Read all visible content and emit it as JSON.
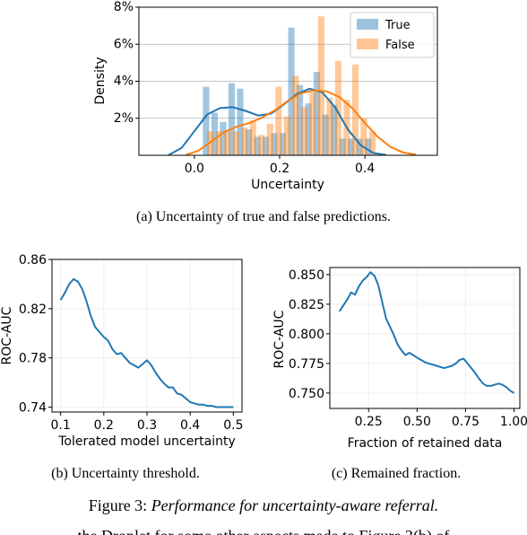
{
  "figure": {
    "caption_prefix": "Figure 3:",
    "caption_text": "Performance for uncertainty-aware referral.",
    "bottom_fragment": "the Droplet for some other aspects made to Figure 3(b) of"
  },
  "chart_data": [
    {
      "id": "a",
      "type": "histogram",
      "caption": "(a)  Uncertainty of true and false predictions.",
      "xlabel": "Uncertainty",
      "ylabel": "Density",
      "xlim": [
        -0.13,
        0.57
      ],
      "ylim": [
        0,
        8
      ],
      "xticks": [
        0.0,
        0.2,
        0.4
      ],
      "xtick_labels": [
        "0.0",
        "0.2",
        "0.4"
      ],
      "yticks": [
        2,
        4,
        6,
        8
      ],
      "ytick_labels": [
        "2%",
        "4%",
        "6%",
        "8%"
      ],
      "grid": "y",
      "legend_position": "top-right",
      "series": [
        {
          "name": "True",
          "color": "#1f77b4",
          "bins": [
            [
              0.02,
              0.035,
              3.7
            ],
            [
              0.04,
              0.055,
              2.3
            ],
            [
              0.06,
              0.075,
              1.8
            ],
            [
              0.08,
              0.095,
              3.9
            ],
            [
              0.1,
              0.115,
              3.6
            ],
            [
              0.12,
              0.135,
              1.4
            ],
            [
              0.14,
              0.155,
              1.0
            ],
            [
              0.16,
              0.175,
              1.0
            ],
            [
              0.18,
              0.195,
              1.2
            ],
            [
              0.2,
              0.215,
              1.2
            ],
            [
              0.22,
              0.235,
              6.9
            ],
            [
              0.24,
              0.255,
              3.8
            ],
            [
              0.26,
              0.275,
              2.8
            ],
            [
              0.28,
              0.295,
              4.5
            ],
            [
              0.3,
              0.315,
              2.2
            ],
            [
              0.32,
              0.335,
              2.7
            ],
            [
              0.34,
              0.355,
              0.9
            ],
            [
              0.36,
              0.375,
              0.9
            ],
            [
              0.38,
              0.395,
              0.9
            ],
            [
              0.4,
              0.415,
              0.9
            ]
          ],
          "kde": [
            [
              -0.06,
              0.02
            ],
            [
              -0.03,
              0.4
            ],
            [
              0.0,
              1.3
            ],
            [
              0.03,
              2.2
            ],
            [
              0.06,
              2.55
            ],
            [
              0.09,
              2.6
            ],
            [
              0.12,
              2.4
            ],
            [
              0.15,
              2.15
            ],
            [
              0.18,
              2.25
            ],
            [
              0.21,
              2.75
            ],
            [
              0.24,
              3.3
            ],
            [
              0.27,
              3.6
            ],
            [
              0.3,
              3.4
            ],
            [
              0.33,
              2.6
            ],
            [
              0.36,
              1.4
            ],
            [
              0.39,
              0.55
            ],
            [
              0.42,
              0.12
            ],
            [
              0.45,
              0.02
            ]
          ]
        },
        {
          "name": "False",
          "color": "#ff7f0e",
          "bins": [
            [
              0.03,
              0.045,
              1.3
            ],
            [
              0.05,
              0.065,
              1.3
            ],
            [
              0.07,
              0.085,
              1.3
            ],
            [
              0.09,
              0.105,
              1.3
            ],
            [
              0.11,
              0.125,
              1.5
            ],
            [
              0.13,
              0.145,
              1.9
            ],
            [
              0.15,
              0.165,
              1.1
            ],
            [
              0.17,
              0.185,
              1.7
            ],
            [
              0.19,
              0.205,
              3.7
            ],
            [
              0.21,
              0.225,
              2.1
            ],
            [
              0.23,
              0.245,
              4.3
            ],
            [
              0.25,
              0.265,
              2.6
            ],
            [
              0.27,
              0.285,
              3.4
            ],
            [
              0.29,
              0.305,
              7.5
            ],
            [
              0.31,
              0.325,
              3.1
            ],
            [
              0.33,
              0.345,
              5.1
            ],
            [
              0.35,
              0.365,
              3.0
            ],
            [
              0.37,
              0.385,
              4.9
            ],
            [
              0.39,
              0.405,
              2.0
            ],
            [
              0.41,
              0.425,
              1.3
            ]
          ],
          "kde": [
            [
              -0.02,
              0.02
            ],
            [
              0.01,
              0.25
            ],
            [
              0.04,
              0.75
            ],
            [
              0.07,
              1.25
            ],
            [
              0.1,
              1.55
            ],
            [
              0.13,
              1.75
            ],
            [
              0.16,
              2.05
            ],
            [
              0.19,
              2.45
            ],
            [
              0.22,
              2.95
            ],
            [
              0.25,
              3.35
            ],
            [
              0.28,
              3.5
            ],
            [
              0.31,
              3.45
            ],
            [
              0.34,
              3.15
            ],
            [
              0.37,
              2.55
            ],
            [
              0.4,
              1.75
            ],
            [
              0.43,
              1.0
            ],
            [
              0.46,
              0.45
            ],
            [
              0.49,
              0.15
            ],
            [
              0.52,
              0.03
            ]
          ]
        }
      ]
    },
    {
      "id": "b",
      "type": "line",
      "caption": "(b)  Uncertainty threshold.",
      "xlabel": "Tolerated model uncertainty",
      "ylabel": "ROC-AUC",
      "xlim": [
        0.08,
        0.52
      ],
      "ylim": [
        0.736,
        0.86
      ],
      "xticks": [
        0.1,
        0.2,
        0.3,
        0.4,
        0.5
      ],
      "xtick_labels": [
        "0.1",
        "0.2",
        "0.3",
        "0.4",
        "0.5"
      ],
      "yticks": [
        0.74,
        0.78,
        0.82,
        0.86
      ],
      "ytick_labels": [
        "0.74",
        "0.78",
        "0.82",
        "0.86"
      ],
      "grid": "both",
      "series": [
        {
          "color": "#1f77b4",
          "x": [
            0.1,
            0.11,
            0.12,
            0.13,
            0.14,
            0.15,
            0.16,
            0.17,
            0.18,
            0.19,
            0.2,
            0.21,
            0.22,
            0.23,
            0.24,
            0.25,
            0.26,
            0.27,
            0.28,
            0.29,
            0.3,
            0.31,
            0.32,
            0.33,
            0.34,
            0.35,
            0.36,
            0.37,
            0.38,
            0.39,
            0.4,
            0.41,
            0.42,
            0.43,
            0.44,
            0.45,
            0.46,
            0.47,
            0.48,
            0.49,
            0.5
          ],
          "y": [
            0.827,
            0.833,
            0.84,
            0.844,
            0.842,
            0.836,
            0.826,
            0.814,
            0.805,
            0.801,
            0.797,
            0.794,
            0.787,
            0.783,
            0.784,
            0.78,
            0.776,
            0.774,
            0.772,
            0.775,
            0.778,
            0.774,
            0.768,
            0.763,
            0.759,
            0.756,
            0.756,
            0.751,
            0.75,
            0.747,
            0.744,
            0.743,
            0.742,
            0.742,
            0.741,
            0.741,
            0.74,
            0.74,
            0.74,
            0.74,
            0.74
          ]
        }
      ]
    },
    {
      "id": "c",
      "type": "line",
      "caption": "(c)  Remained fraction.",
      "xlabel": "Fraction of retained data",
      "ylabel": "ROC-AUC",
      "xlim": [
        0.05,
        1.03
      ],
      "ylim": [
        0.737,
        0.856
      ],
      "xticks": [
        0.25,
        0.5,
        0.75,
        1.0
      ],
      "xtick_labels": [
        "0.25",
        "0.50",
        "0.75",
        "1.00"
      ],
      "yticks": [
        0.75,
        0.775,
        0.8,
        0.825,
        0.85
      ],
      "ytick_labels": [
        "0.750",
        "0.775",
        "0.800",
        "0.825",
        "0.850"
      ],
      "grid": "both",
      "series": [
        {
          "color": "#1f77b4",
          "x": [
            0.1,
            0.12,
            0.14,
            0.16,
            0.18,
            0.2,
            0.22,
            0.24,
            0.26,
            0.28,
            0.3,
            0.32,
            0.34,
            0.36,
            0.38,
            0.4,
            0.42,
            0.44,
            0.46,
            0.48,
            0.5,
            0.52,
            0.54,
            0.56,
            0.58,
            0.6,
            0.62,
            0.64,
            0.66,
            0.68,
            0.7,
            0.72,
            0.74,
            0.76,
            0.78,
            0.8,
            0.82,
            0.84,
            0.86,
            0.88,
            0.9,
            0.92,
            0.94,
            0.96,
            0.98,
            1.0
          ],
          "y": [
            0.819,
            0.824,
            0.829,
            0.835,
            0.833,
            0.84,
            0.845,
            0.848,
            0.852,
            0.849,
            0.841,
            0.827,
            0.813,
            0.806,
            0.799,
            0.791,
            0.786,
            0.782,
            0.784,
            0.782,
            0.78,
            0.778,
            0.776,
            0.775,
            0.774,
            0.773,
            0.772,
            0.771,
            0.772,
            0.773,
            0.775,
            0.778,
            0.779,
            0.775,
            0.771,
            0.767,
            0.762,
            0.758,
            0.756,
            0.756,
            0.757,
            0.758,
            0.757,
            0.755,
            0.752,
            0.75
          ]
        }
      ]
    }
  ]
}
